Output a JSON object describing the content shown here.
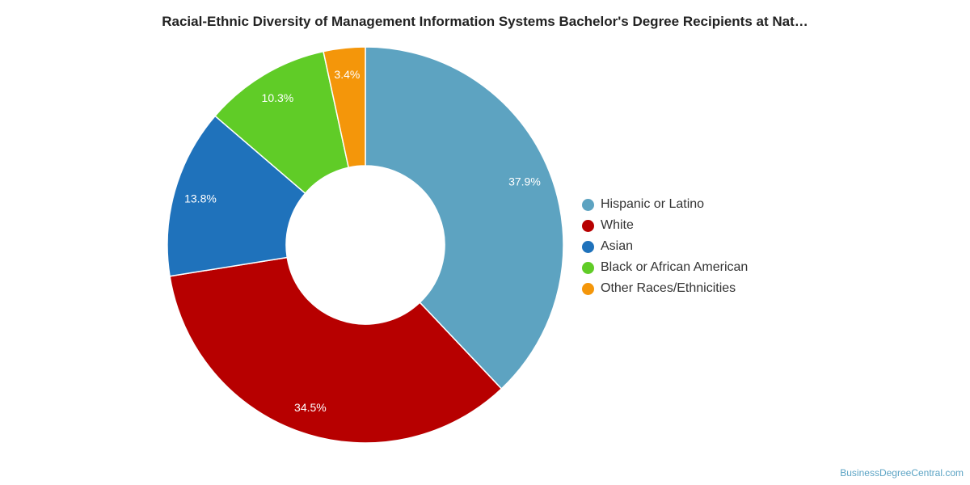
{
  "chart_data": {
    "type": "pie",
    "title": "Racial-Ethnic Diversity of Management Information Systems Bachelor's Degree Recipients at Nat…",
    "donut": true,
    "legend_position": "right",
    "slices": [
      {
        "name": "Hispanic or Latino",
        "value": 37.9,
        "label": "37.9%",
        "color": "#5da3c1"
      },
      {
        "name": "White",
        "value": 34.5,
        "label": "34.5%",
        "color": "#b70000"
      },
      {
        "name": "Asian",
        "value": 13.8,
        "label": "13.8%",
        "color": "#1f72bb"
      },
      {
        "name": "Black or African American",
        "value": 10.3,
        "label": "10.3%",
        "color": "#60cc27"
      },
      {
        "name": "Other Races/Ethnicities",
        "value": 3.4,
        "label": "3.4%",
        "color": "#f4960a"
      }
    ]
  },
  "credit": "BusinessDegreeCentral.com"
}
